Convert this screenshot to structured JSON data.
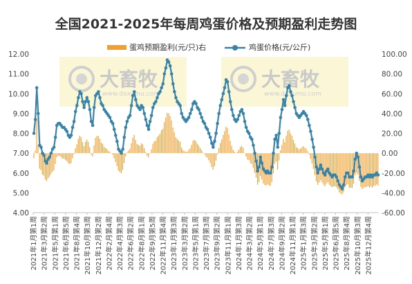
{
  "chart_data": {
    "type": "bar+line",
    "title": "全国2021-2025年每周鸡蛋价格及预期盈利走势图",
    "legend": [
      "蛋鸡预期盈利(元/只)右",
      "鸡蛋价格(元/公斤)"
    ],
    "legend_position": "top",
    "colors": {
      "profit_bars": "#f0a030",
      "price_line": "#3a83a6",
      "watermark_box": "#f6efb4"
    },
    "watermark": {
      "logo_text": "大畜牧",
      "url_text": "www.daxumu.com",
      "icon": "ring-logo-icon"
    },
    "grid": false,
    "left_axis": {
      "ylim": [
        4.0,
        12.0
      ],
      "ticks": [
        "4.00",
        "5.00",
        "6.00",
        "7.00",
        "8.00",
        "9.00",
        "10.00",
        "11.00",
        "12.00"
      ]
    },
    "right_axis": {
      "ylim": [
        -60.0,
        100.0
      ],
      "ticks": [
        "-60.00",
        "-40.00",
        "-20.00",
        "0.00",
        "20.00",
        "40.00",
        "60.00",
        "80.00",
        "100.00"
      ]
    },
    "x_tick_labels": [
      "2021年1月第1周",
      "2021年3月第2周",
      "2021年5月第1周",
      "2021年6月第5周",
      "2021年8月第4周",
      "2021年10月第3周",
      "2021年12月第2周",
      "2022年2月第4周",
      "2022年4月第3周",
      "2022年6月第2周",
      "2022年8月第1周",
      "2022年9月第5周",
      "2022年11月第4周",
      "2023年1月第3周",
      "2023年3月第2周",
      "2023年5月第1周",
      "2023年7月第3周",
      "2023年9月第2周",
      "2023年11月第1周",
      "2024年1月第3周",
      "2024年3月第2周",
      "2024年5月第1周",
      "2024年7月第3周",
      "2024年9月第2周",
      "2024年11月第1周",
      "2025年1月第3周",
      "2025年3月第2周",
      "2025年5月第1周",
      "2025年6月第5周",
      "2025年8月第4周",
      "2025年10月第3周",
      "2025年12月第4周"
    ],
    "series": [
      {
        "name": "鸡蛋价格(元/公斤)",
        "axis": "left",
        "values": [
          8.0,
          8.7,
          10.3,
          9.0,
          7.4,
          7.3,
          7.0,
          6.9,
          6.6,
          6.5,
          6.7,
          6.8,
          7.0,
          7.2,
          7.3,
          7.8,
          8.4,
          8.5,
          8.5,
          8.4,
          8.3,
          8.3,
          8.2,
          8.1,
          7.9,
          7.8,
          7.9,
          8.3,
          8.6,
          9.1,
          9.4,
          9.8,
          10.1,
          10.0,
          9.6,
          9.3,
          9.6,
          9.8,
          9.6,
          9.2,
          8.6,
          8.4,
          9.3,
          9.9,
          10.0,
          10.1,
          9.8,
          9.5,
          9.4,
          9.2,
          9.1,
          9.0,
          8.9,
          8.8,
          8.6,
          8.5,
          8.2,
          7.9,
          7.6,
          7.2,
          7.1,
          7.0,
          7.2,
          7.8,
          8.3,
          8.6,
          8.8,
          8.9,
          9.4,
          9.9,
          10.1,
          9.7,
          9.4,
          9.3,
          9.2,
          9.4,
          9.3,
          9.0,
          8.7,
          8.4,
          8.2,
          8.6,
          8.9,
          9.3,
          9.5,
          9.6,
          9.8,
          10.0,
          10.1,
          10.3,
          10.5,
          11.0,
          11.3,
          11.7,
          11.6,
          11.4,
          11.0,
          10.5,
          10.1,
          9.8,
          9.6,
          9.5,
          9.4,
          9.0,
          8.8,
          8.7,
          8.6,
          8.7,
          8.8,
          9.0,
          9.2,
          9.5,
          9.6,
          9.5,
          9.3,
          9.2,
          9.0,
          8.8,
          8.6,
          8.5,
          8.3,
          8.2,
          8.0,
          7.8,
          7.5,
          7.3,
          7.6,
          8.0,
          8.5,
          9.0,
          9.4,
          9.7,
          10.0,
          10.3,
          10.7,
          10.6,
          10.1,
          9.6,
          9.2,
          8.9,
          8.7,
          8.6,
          8.7,
          8.9,
          9.1,
          9.2,
          9.0,
          8.6,
          8.3,
          8.1,
          8.0,
          7.8,
          7.7,
          7.4,
          7.0,
          6.6,
          6.1,
          6.3,
          6.8,
          6.5,
          6.2,
          6.1,
          6.0,
          6.1,
          6.0,
          6.0,
          6.3,
          7.0,
          7.7,
          7.9,
          7.3,
          8.0,
          8.8,
          9.2,
          9.7,
          9.4,
          9.9,
          10.3,
          10.4,
          10.1,
          9.9,
          9.6,
          9.3,
          9.0,
          8.9,
          8.8,
          8.9,
          9.0,
          9.1,
          9.0,
          8.9,
          8.7,
          8.4,
          8.1,
          7.7,
          7.3,
          6.8,
          6.3,
          6.0,
          6.2,
          6.4,
          6.2,
          6.0,
          5.9,
          6.1,
          6.2,
          6.0,
          5.9,
          5.8,
          5.9,
          5.9,
          5.8,
          5.6,
          5.4,
          5.3,
          5.2,
          5.4,
          5.8,
          6.0,
          6.0,
          5.8,
          5.8,
          5.8,
          6.1,
          6.7,
          7.0,
          6.8,
          6.3,
          5.8,
          5.6,
          5.7,
          5.8,
          5.8,
          5.9,
          5.8,
          5.9,
          5.8,
          5.9,
          5.9,
          6.0,
          5.9
        ],
        "marker_color": "#3a83a6"
      },
      {
        "name": "蛋鸡预期盈利(元/只)右",
        "axis": "right",
        "values": [
          -5.2,
          2.6,
          34.7,
          7.9,
          -15.6,
          -17.2,
          -21.5,
          -22.6,
          -26.6,
          -28.2,
          -25.4,
          -23.6,
          -21.2,
          -18.8,
          -17.3,
          -10.9,
          -4.3,
          -2.5,
          -2.8,
          -3.9,
          -5.6,
          -5.5,
          -6.9,
          -8.0,
          -10.1,
          -10.9,
          -10.2,
          -5.1,
          -1.1,
          5.0,
          9.0,
          14.6,
          17.6,
          16.3,
          11.0,
          7.1,
          11.2,
          13.7,
          11.4,
          6.2,
          -1.2,
          -3.4,
          7.8,
          15.4,
          17.4,
          17.5,
          14.6,
          10.7,
          9.4,
          6.5,
          5.1,
          4.3,
          2.4,
          1.3,
          -0.2,
          -1.6,
          -5.1,
          -9.0,
          -13.2,
          -17.6,
          -19.0,
          -20.2,
          -17.1,
          -10.1,
          -3.2,
          0.7,
          2.7,
          4.5,
          10.1,
          15.6,
          18.6,
          13.3,
          9.3,
          8.2,
          7.5,
          9.9,
          8.8,
          5.1,
          1.0,
          -2.9,
          -4.3,
          -0.5,
          3.9,
          9.5,
          11.9,
          12.7,
          16.2,
          17.8,
          19.6,
          23.0,
          24.6,
          31.1,
          35.9,
          40.6,
          40.3,
          37.7,
          33.1,
          25.9,
          21.0,
          16.2,
          14.4,
          12.7,
          11.6,
          5.6,
          3.2,
          2.0,
          1.3,
          1.6,
          3.2,
          5.0,
          8.4,
          12.5,
          13.5,
          12.3,
          9.7,
          7.7,
          5.4,
          3.2,
          0.5,
          -0.9,
          -3.3,
          -4.6,
          -7.2,
          -9.9,
          -14.0,
          -16.8,
          -13.2,
          -7.6,
          -1.3,
          5.1,
          10.3,
          14.0,
          18.3,
          22.3,
          26.7,
          25.3,
          18.8,
          12.3,
          7.4,
          3.3,
          1.5,
          0.1,
          1.3,
          3.6,
          6.2,
          7.4,
          5.6,
          0.3,
          -3.4,
          -6.6,
          -7.0,
          -9.9,
          -11.2,
          -15.0,
          -19.9,
          -24.7,
          -31.8,
          -29.2,
          -23.1,
          -26.6,
          -30.5,
          -32.0,
          -32.8,
          -31.5,
          -32.6,
          -32.9,
          -29.1,
          -20.3,
          -10.7,
          -8.4,
          -16.5,
          -7.5,
          2.9,
          8.3,
          14.4,
          11.2,
          17.4,
          22.7,
          23.6,
          20.0,
          17.5,
          13.3,
          9.8,
          6.0,
          5.1,
          3.8,
          4.8,
          6.0,
          7.1,
          5.5,
          4.4,
          2.1,
          -1.3,
          -5.8,
          -10.4,
          -15.8,
          -22.0,
          -28.5,
          -31.9,
          -29.7,
          -27.2,
          -29.4,
          -31.8,
          -33.5,
          -30.8,
          -29.3,
          -31.8,
          -33.2,
          -34.4,
          -33.5,
          -33.4,
          -34.4,
          -36.5,
          -39.6,
          -40.7,
          -41.9,
          -39.5,
          -34.8,
          -32.3,
          -31.5,
          -35.0,
          -34.8,
          -35.0,
          -30.8,
          -22.6,
          -19.8,
          -21.5,
          -27.9,
          -34.0,
          -36.2,
          -35.2,
          -34.3,
          -34.1,
          -33.3,
          -34.8,
          -33.6,
          -34.7,
          -32.9,
          -33.0,
          -31.5,
          -32.6
        ],
        "color": "#f0a030"
      }
    ]
  }
}
